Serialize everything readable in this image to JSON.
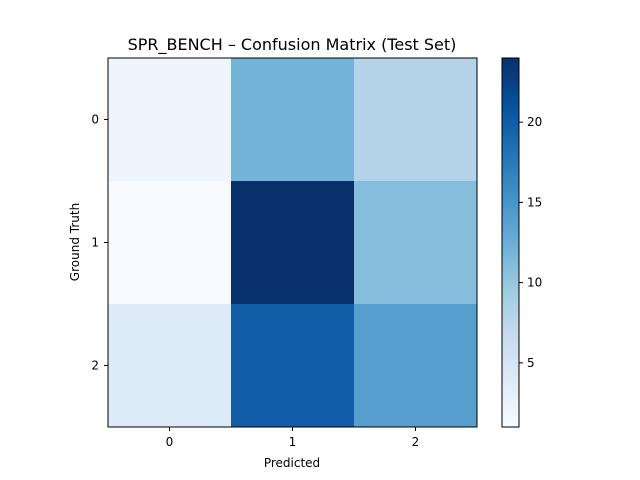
{
  "chart_data": {
    "type": "heatmap",
    "title": "SPR_BENCH – Confusion Matrix (Test Set)",
    "xlabel": "Predicted",
    "ylabel": "Ground Truth",
    "x_categories": [
      "0",
      "1",
      "2"
    ],
    "y_categories": [
      "0",
      "1",
      "2"
    ],
    "matrix": [
      [
        2,
        12,
        8
      ],
      [
        1,
        24,
        11
      ],
      [
        4,
        20,
        14
      ]
    ],
    "colormap": "Blues",
    "colorbar": {
      "vmin": 1,
      "vmax": 24,
      "ticks": [
        5,
        10,
        15,
        20
      ],
      "tick_labels": [
        "5",
        "10",
        "15",
        "20"
      ]
    }
  }
}
